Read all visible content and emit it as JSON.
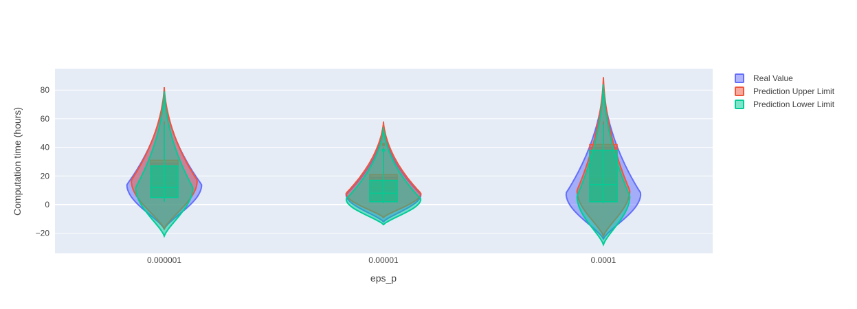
{
  "chart_data": {
    "type": "violin",
    "title": "",
    "xlabel": "eps_p",
    "ylabel": "Computation time (hours)",
    "ylim": [
      -33,
      95
    ],
    "yticks": [
      -20,
      0,
      20,
      40,
      60,
      80
    ],
    "ytick_labels": [
      "−20",
      "0",
      "20",
      "40",
      "60",
      "80"
    ],
    "categories": [
      "0.000001",
      "0.00001",
      "0.0001"
    ],
    "grid": true,
    "legend_position": "top-right",
    "colors": {
      "plot_bg": "#e5ecf6",
      "grid": "#ffffff"
    },
    "series": [
      {
        "name": "Real Value",
        "color": "#636efa",
        "stats": [
          {
            "min": -17,
            "max": 80,
            "peak_y": 14,
            "half_width": 0.17,
            "q1": 5,
            "median": 12,
            "q3": 29,
            "whisker_low": 2,
            "whisker_high": 58,
            "outliers": []
          },
          {
            "min": -12,
            "max": 55,
            "peak_y": 7,
            "half_width": 0.17,
            "q1": 2,
            "median": 10,
            "q3": 19,
            "whisker_low": 1,
            "whisker_high": 38,
            "outliers": [
              42
            ]
          },
          {
            "min": -24,
            "max": 84,
            "peak_y": 8,
            "half_width": 0.17,
            "q1": 2,
            "median": 16,
            "q3": 40,
            "whisker_low": 1,
            "whisker_high": 58,
            "outliers": []
          }
        ]
      },
      {
        "name": "Prediction Upper Limit",
        "color": "#ef553b",
        "stats": [
          {
            "min": -17,
            "max": 82,
            "peak_y": 17,
            "half_width": 0.15,
            "q1": 6,
            "median": 15,
            "q3": 31,
            "whisker_low": 3,
            "whisker_high": 58,
            "outliers": []
          },
          {
            "min": -9,
            "max": 58,
            "peak_y": 8,
            "half_width": 0.17,
            "q1": 3,
            "median": 12,
            "q3": 21,
            "whisker_low": 1,
            "whisker_high": 40,
            "outliers": [
              42
            ]
          },
          {
            "min": -22,
            "max": 89,
            "peak_y": 10,
            "half_width": 0.12,
            "q1": 3,
            "median": 18,
            "q3": 42,
            "whisker_low": 1,
            "whisker_high": 58,
            "outliers": []
          }
        ]
      },
      {
        "name": "Prediction Lower Limit",
        "color": "#00cc96",
        "stats": [
          {
            "min": -22,
            "max": 79,
            "peak_y": 12,
            "half_width": 0.13,
            "q1": 5,
            "median": 12,
            "q3": 27,
            "whisker_low": 2,
            "whisker_high": 56,
            "outliers": []
          },
          {
            "min": -14,
            "max": 54,
            "peak_y": 4,
            "half_width": 0.17,
            "q1": 2,
            "median": 8,
            "q3": 17,
            "whisker_low": 1,
            "whisker_high": 37,
            "outliers": [
              38
            ]
          },
          {
            "min": -28,
            "max": 84,
            "peak_y": 6,
            "half_width": 0.12,
            "q1": 2,
            "median": 14,
            "q3": 38,
            "whisker_low": 1,
            "whisker_high": 56,
            "outliers": []
          }
        ]
      }
    ]
  }
}
